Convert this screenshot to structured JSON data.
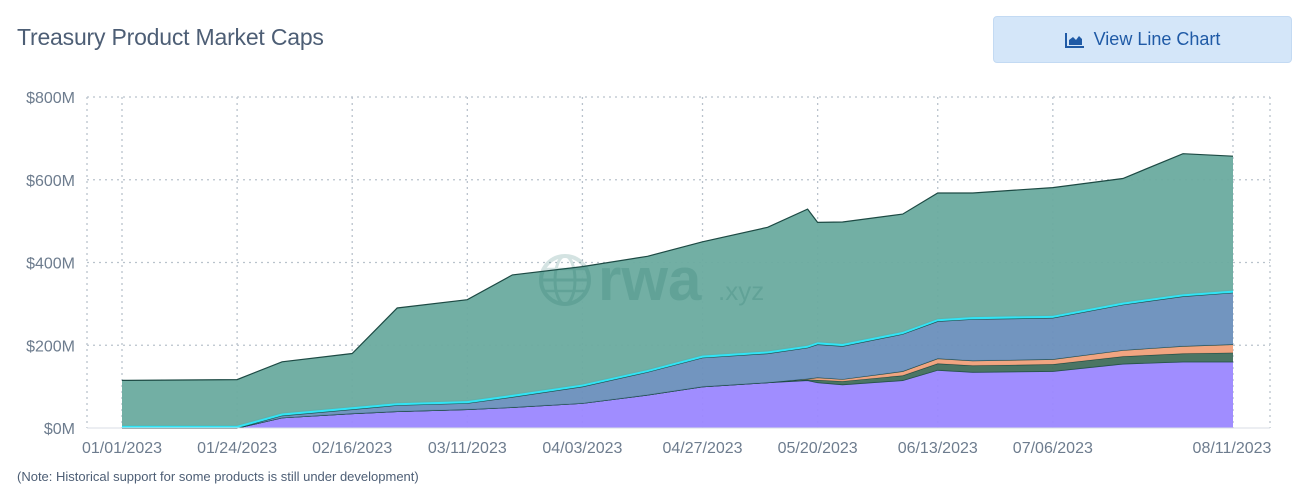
{
  "header": {
    "title": "Treasury Product Market Caps",
    "button_label": "View Line Chart",
    "button_icon": "area-chart-icon"
  },
  "watermark": {
    "text_main": "rwa",
    "text_suffix": ".xyz",
    "icon": "globe-icon"
  },
  "note": "(Note: Historical support for some products is still under development)",
  "colors": {
    "accent": "#1f5aa6",
    "button_bg": "#d4e6f9"
  },
  "chart_data": {
    "type": "area",
    "stacked": true,
    "x_ticks": [
      "01/01/2023",
      "01/24/2023",
      "02/16/2023",
      "03/11/2023",
      "04/03/2023",
      "04/27/2023",
      "05/20/2023",
      "06/13/2023",
      "07/06/2023",
      "08/11/2023"
    ],
    "y_ticks": [
      "$0M",
      "$200M",
      "$400M",
      "$600M",
      "$800M"
    ],
    "ylim": [
      0,
      800
    ],
    "x": [
      "01/01/2023",
      "01/24/2023",
      "02/02/2023",
      "02/16/2023",
      "02/25/2023",
      "03/11/2023",
      "03/20/2023",
      "04/03/2023",
      "04/16/2023",
      "04/27/2023",
      "05/10/2023",
      "05/18/2023",
      "05/20/2023",
      "05/25/2023",
      "06/06/2023",
      "06/13/2023",
      "06/20/2023",
      "07/06/2023",
      "07/20/2023",
      "08/01/2023",
      "08/11/2023"
    ],
    "series": [
      {
        "color": "#9b87ff",
        "values": [
          0,
          0,
          25,
          35,
          40,
          45,
          50,
          60,
          80,
          100,
          110,
          115,
          110,
          105,
          115,
          140,
          135,
          137,
          155,
          160,
          160
        ]
      },
      {
        "color": "#416e5c",
        "values": [
          0,
          0,
          0,
          0,
          0,
          0,
          0,
          0,
          0,
          0,
          0,
          2,
          6,
          8,
          12,
          16,
          16,
          17,
          18,
          20,
          22
        ]
      },
      {
        "color": "#f0a07a",
        "values": [
          0,
          0,
          0,
          0,
          0,
          0,
          0,
          0,
          0,
          0,
          0,
          2,
          6,
          5,
          10,
          12,
          12,
          12,
          15,
          18,
          20
        ]
      },
      {
        "color": "#6a8fbc",
        "values": [
          0,
          0,
          5,
          10,
          15,
          15,
          25,
          40,
          55,
          70,
          70,
          75,
          80,
          80,
          90,
          90,
          100,
          100,
          110,
          120,
          125
        ]
      },
      {
        "color": "#2fe5f7",
        "values": [
          5,
          5,
          5,
          5,
          5,
          5,
          5,
          5,
          5,
          5,
          5,
          5,
          5,
          5,
          5,
          5,
          5,
          5,
          5,
          5,
          5
        ]
      },
      {
        "color": "#6aab9f",
        "values": [
          110,
          112,
          125,
          130,
          230,
          245,
          290,
          285,
          275,
          275,
          300,
          330,
          290,
          295,
          285,
          305,
          300,
          310,
          300,
          340,
          325
        ]
      }
    ]
  }
}
